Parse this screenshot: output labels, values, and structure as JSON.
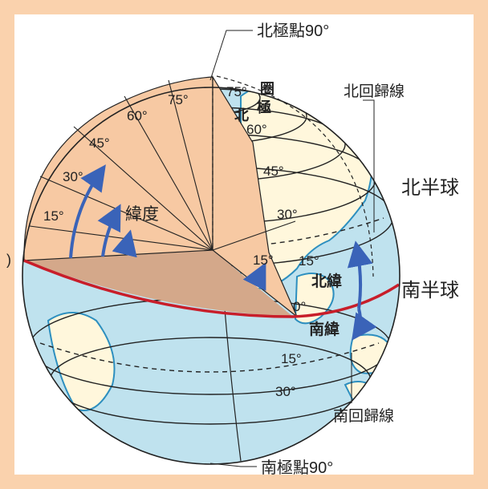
{
  "colors": {
    "frame": "#fad2ad",
    "ocean": "#bfe2ee",
    "land": "#fff7dc",
    "coast": "#2d8fbf",
    "equator": "#c81e2a",
    "arrow": "#3a63b8",
    "wedge": "#f7c9a3",
    "equator_plane": "#d4a88a",
    "grid": "#222222"
  },
  "labels": {
    "north_pole": "北極點90°",
    "arctic_circle_1": "圈",
    "arctic_circle_2": "極",
    "arctic_circle_3": "北",
    "tropic_cancer": "北回歸線",
    "northern_hemisphere": "北半球",
    "southern_hemisphere": "南半球",
    "latitude": "緯度",
    "north_latitude": "北緯",
    "south_latitude": "南緯",
    "tropic_capricorn": "南回歸線",
    "south_pole": "南極點90°",
    "equator_edge": ")"
  },
  "wedge_degrees": {
    "d75": "75°",
    "d60": "60°",
    "d45": "45°",
    "d30": "30°",
    "d15": "15°"
  },
  "globe_degrees": {
    "d75": "75°",
    "d60": "60°",
    "d45": "45°",
    "d30": "30°",
    "d15_north": "15°",
    "d15_center": "15°",
    "d0": "0°",
    "d15_south": "15°",
    "d30_south": "30°"
  }
}
